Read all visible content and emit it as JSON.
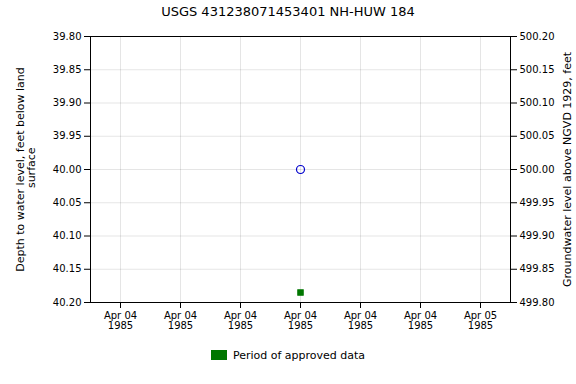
{
  "chart_data": {
    "type": "scatter",
    "title": "USGS 431238071453401 NH-HUW  184",
    "y_label": "Depth to water level, feet below land\n surface",
    "y2_label": "Groundwater level above NGVD 1929, feet",
    "categories": [
      "Apr 04\n1985",
      "Apr 04\n1985",
      "Apr 04\n1985",
      "Apr 04\n1985",
      "Apr 04\n1985",
      "Apr 04\n1985",
      "Apr 05\n1985"
    ],
    "series": [
      {
        "color": "#0000cc",
        "marker": "circle",
        "values": [
          null,
          null,
          null,
          40.0,
          null,
          null,
          null
        ]
      },
      {
        "name": "Period of approved data",
        "color": "#007700",
        "marker": "square",
        "values": [
          null,
          null,
          null,
          40.185,
          null,
          null,
          null
        ]
      }
    ],
    "ylim": [
      40.2,
      39.8
    ],
    "yticks": [
      {
        "value": 39.8,
        "label": "39.80"
      },
      39.85,
      {
        "value": 39.9,
        "label": "39.90"
      },
      39.95,
      {
        "value": 40.0,
        "label": "40.00"
      },
      40.05,
      {
        "value": 40.1,
        "label": "40.10"
      },
      40.15,
      {
        "value": 40.2,
        "label": "40.20"
      }
    ],
    "y2lim": [
      499.8,
      500.2
    ],
    "y2ticks": [
      {
        "value": 500.2,
        "label": "500.20"
      },
      500.15,
      {
        "value": 500.1,
        "label": "500.10"
      },
      500.05,
      {
        "value": 500.0,
        "label": "500.00"
      },
      499.95,
      {
        "value": 499.9,
        "label": "499.90"
      },
      499.85,
      {
        "value": 499.8,
        "label": "499.80"
      }
    ],
    "grid": true,
    "legend": "bottom"
  }
}
